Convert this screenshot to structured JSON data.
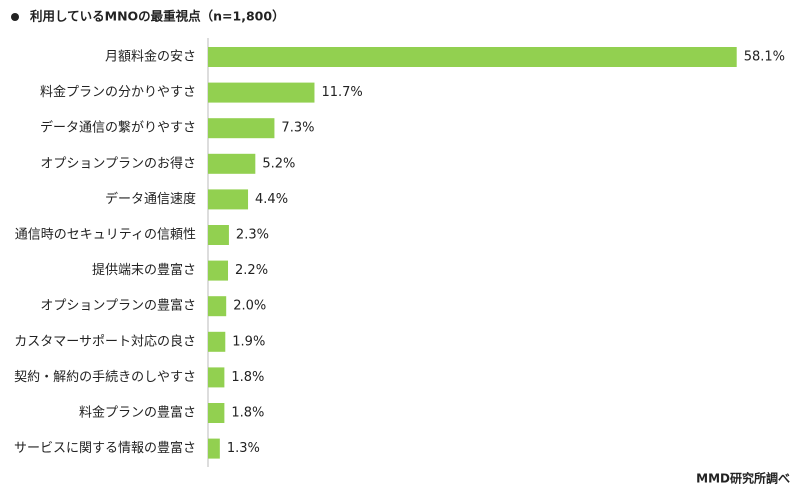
{
  "chart_data": {
    "type": "bar",
    "orientation": "horizontal",
    "title": "利用しているMNOの最重視点（n=1,800）",
    "source": "MMD研究所調べ",
    "categories": [
      "月額料金の安さ",
      "料金プランの分かりやすさ",
      "データ通信の繋がりやすさ",
      "オプションプランのお得さ",
      "データ通信速度",
      "通信時のセキュリティの信頼性",
      "提供端末の豊富さ",
      "オプションプランの豊富さ",
      "カスタマーサポート対応の良さ",
      "契約・解約の手続きのしやすさ",
      "料金プランの豊富さ",
      "サービスに関する情報の豊富さ"
    ],
    "values": [
      58.1,
      11.7,
      7.3,
      5.2,
      4.4,
      2.3,
      2.2,
      2.0,
      1.9,
      1.8,
      1.8,
      1.3
    ],
    "value_labels": [
      "58.1%",
      "11.7%",
      "7.3%",
      "5.2%",
      "4.4%",
      "2.3%",
      "2.2%",
      "2.0%",
      "1.9%",
      "1.8%",
      "1.8%",
      "1.3%"
    ],
    "color": "#92d050"
  }
}
